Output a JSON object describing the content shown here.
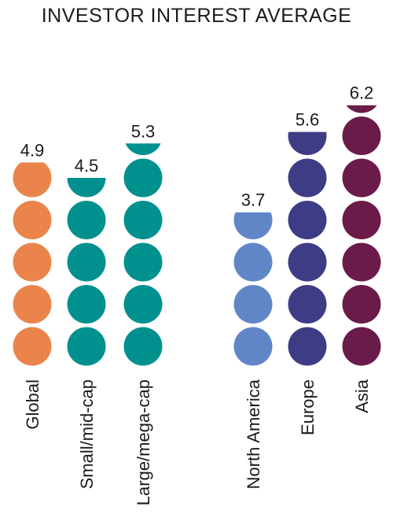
{
  "chart_data": {
    "type": "bar",
    "title": "INVESTOR INTEREST AVERAGE",
    "categories": [
      "Global",
      "Small/mid-cap",
      "Large/mega-cap",
      "North America",
      "Europe",
      "Asia"
    ],
    "values": [
      4.9,
      4.5,
      5.3,
      3.7,
      5.6,
      6.2
    ],
    "colors": [
      "#ea844b",
      "#00918f",
      "#00918f",
      "#6186c8",
      "#3f3c86",
      "#6a1b49"
    ],
    "xlabel": "",
    "ylabel": "",
    "grid": false,
    "legend": "none"
  }
}
